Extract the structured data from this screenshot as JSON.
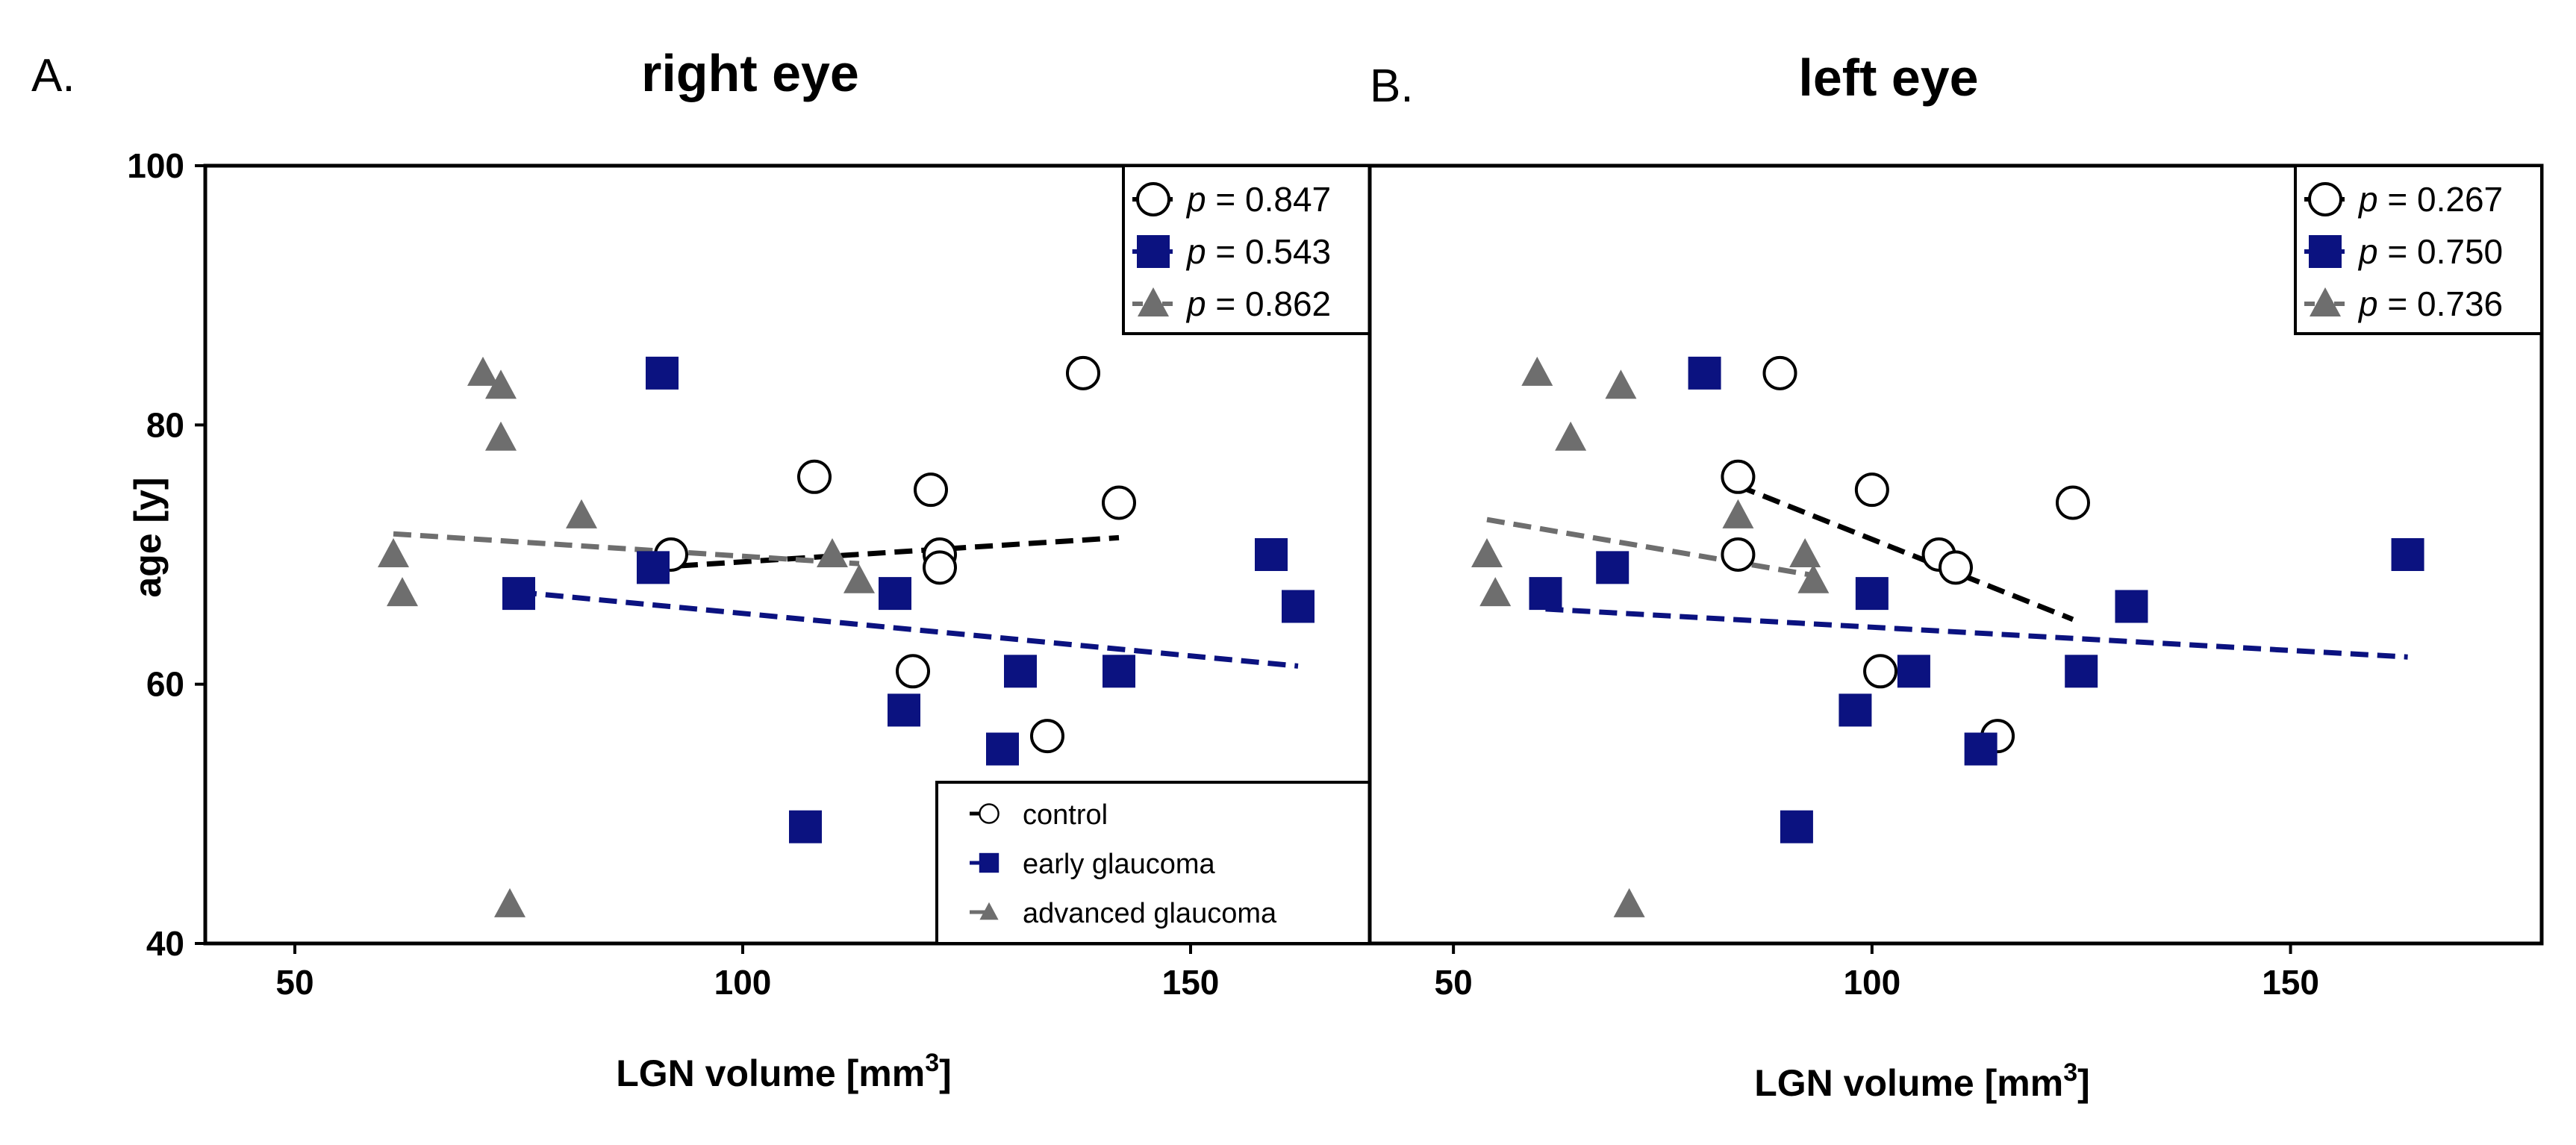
{
  "colors": {
    "control": "#000000",
    "early": "#0b1280",
    "advanced": "#6e6e6e"
  },
  "group_legend": [
    {
      "group": "control",
      "label": "control"
    },
    {
      "group": "early",
      "label": "early glaucoma"
    },
    {
      "group": "advanced",
      "label": "advanced glaucoma"
    }
  ],
  "chart_data": [
    {
      "type": "scatter",
      "panel_label": "A.",
      "title": "right eye",
      "xlabel_base": "LGN volume [mm",
      "xlabel_sup": "3",
      "xlabel_end": "]",
      "ylabel": "age [y]",
      "xlim": [
        40,
        170
      ],
      "ylim": [
        40,
        100
      ],
      "xticks": [
        50,
        100,
        150
      ],
      "yticks": [
        40,
        60,
        80,
        100
      ],
      "series": [
        {
          "name": "control",
          "group": "control",
          "p_value": "0.847",
          "points": [
            [
              92,
              70
            ],
            [
              108,
              76
            ],
            [
              121,
              75
            ],
            [
              122,
              70
            ],
            [
              122,
              69
            ],
            [
              119,
              61
            ],
            [
              134,
              56
            ],
            [
              138,
              84
            ],
            [
              142,
              74
            ]
          ],
          "fit": [
            [
              90,
              69
            ],
            [
              142,
              71.3
            ]
          ]
        },
        {
          "name": "early glaucoma",
          "group": "early",
          "p_value": "0.543",
          "points": [
            [
              91,
              84
            ],
            [
              75,
              67
            ],
            [
              90,
              69
            ],
            [
              117,
              67
            ],
            [
              118,
              58
            ],
            [
              131,
              61
            ],
            [
              129,
              55
            ],
            [
              142,
              61
            ],
            [
              107,
              49
            ],
            [
              159,
              70
            ],
            [
              162,
              66
            ]
          ],
          "fit": [
            [
              75,
              67.1
            ],
            [
              162,
              61.4
            ]
          ]
        },
        {
          "name": "advanced glaucoma",
          "group": "advanced",
          "p_value": "0.862",
          "points": [
            [
              61,
              70
            ],
            [
              62,
              67
            ],
            [
              71,
              84
            ],
            [
              73,
              83
            ],
            [
              73,
              79
            ],
            [
              82,
              73
            ],
            [
              110,
              70
            ],
            [
              113,
              68
            ],
            [
              74,
              43
            ]
          ],
          "fit": [
            [
              61,
              71.6
            ],
            [
              113,
              69.3
            ]
          ]
        }
      ]
    },
    {
      "type": "scatter",
      "panel_label": "B.",
      "title": "left eye",
      "xlabel_base": "LGN volume [mm",
      "xlabel_sup": "3",
      "xlabel_end": "]",
      "ylabel": "age [y]",
      "xlim": [
        40,
        180
      ],
      "ylim": [
        40,
        100
      ],
      "xticks": [
        50,
        100,
        150
      ],
      "yticks": [
        40,
        60,
        80,
        100
      ],
      "series": [
        {
          "name": "control",
          "group": "control",
          "p_value": "0.267",
          "points": [
            [
              89,
              84
            ],
            [
              84,
              76
            ],
            [
              84,
              70
            ],
            [
              100,
              75
            ],
            [
              108,
              70
            ],
            [
              110,
              69
            ],
            [
              101,
              61
            ],
            [
              115,
              56
            ],
            [
              124,
              74
            ]
          ],
          "fit": [
            [
              84,
              75.3
            ],
            [
              124,
              65
            ]
          ]
        },
        {
          "name": "early glaucoma",
          "group": "early",
          "p_value": "0.750",
          "points": [
            [
              80,
              84
            ],
            [
              61,
              67
            ],
            [
              69,
              69
            ],
            [
              100,
              67
            ],
            [
              98,
              58
            ],
            [
              105,
              61
            ],
            [
              113,
              55
            ],
            [
              91,
              49
            ],
            [
              125,
              61
            ],
            [
              131,
              66
            ],
            [
              164,
              70
            ]
          ],
          "fit": [
            [
              61,
              65.8
            ],
            [
              164,
              62.1
            ]
          ]
        },
        {
          "name": "advanced glaucoma",
          "group": "advanced",
          "p_value": "0.736",
          "points": [
            [
              54,
              70
            ],
            [
              55,
              67
            ],
            [
              60,
              84
            ],
            [
              64,
              79
            ],
            [
              70,
              83
            ],
            [
              84,
              73
            ],
            [
              92,
              70
            ],
            [
              93,
              68
            ],
            [
              71,
              43
            ]
          ],
          "fit": [
            [
              54,
              72.7
            ],
            [
              93,
              68.4
            ]
          ]
        }
      ]
    }
  ]
}
